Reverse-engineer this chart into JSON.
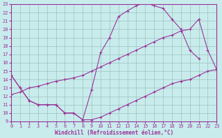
{
  "bg_color": "#c8ecec",
  "grid_color": "#9dbfbf",
  "line_color": "#993399",
  "xlim": [
    0,
    23
  ],
  "ylim": [
    9,
    23
  ],
  "xticks": [
    0,
    1,
    2,
    3,
    4,
    5,
    6,
    7,
    8,
    9,
    10,
    11,
    12,
    13,
    14,
    15,
    16,
    17,
    18,
    19,
    20,
    21,
    22,
    23
  ],
  "yticks": [
    9,
    10,
    11,
    12,
    13,
    14,
    15,
    16,
    17,
    18,
    19,
    20,
    21,
    22,
    23
  ],
  "xlabel": "Windchill (Refroidissement éolien,°C)",
  "line1_x": [
    0,
    1,
    2,
    3,
    4,
    5,
    6,
    7,
    8,
    9,
    10,
    11,
    12,
    13,
    14,
    15,
    16,
    17,
    18,
    19,
    20,
    21,
    22,
    23
  ],
  "line1_y": [
    14.5,
    13.0,
    11.5,
    11.0,
    11.0,
    11.0,
    10.0,
    10.0,
    9.2,
    9.2,
    9.5,
    10.0,
    10.5,
    11.0,
    11.5,
    12.0,
    12.5,
    13.0,
    13.5,
    13.8,
    14.0,
    14.5,
    15.0,
    15.2
  ],
  "line2_x": [
    0,
    1,
    2,
    3,
    4,
    5,
    6,
    7,
    8,
    9,
    10,
    11,
    12,
    13,
    14,
    15,
    16,
    17,
    18,
    19,
    20,
    21
  ],
  "line2_y": [
    14.5,
    13.0,
    11.5,
    11.0,
    11.0,
    11.0,
    10.0,
    10.0,
    9.2,
    12.8,
    17.2,
    19.0,
    21.5,
    22.2,
    22.8,
    23.2,
    22.8,
    22.5,
    21.2,
    20.0,
    17.5,
    16.5
  ],
  "line3_x": [
    0,
    1,
    2,
    3,
    4,
    5,
    6,
    7,
    8,
    9,
    10,
    11,
    12,
    13,
    14,
    15,
    16,
    17,
    18,
    19,
    20,
    21,
    22,
    23
  ],
  "line3_y": [
    12.2,
    12.5,
    13.0,
    13.2,
    13.5,
    13.8,
    14.0,
    14.2,
    14.5,
    15.0,
    15.5,
    16.0,
    16.5,
    17.0,
    17.5,
    18.0,
    18.5,
    19.0,
    19.3,
    19.8,
    20.0,
    21.2,
    17.5,
    15.2
  ]
}
